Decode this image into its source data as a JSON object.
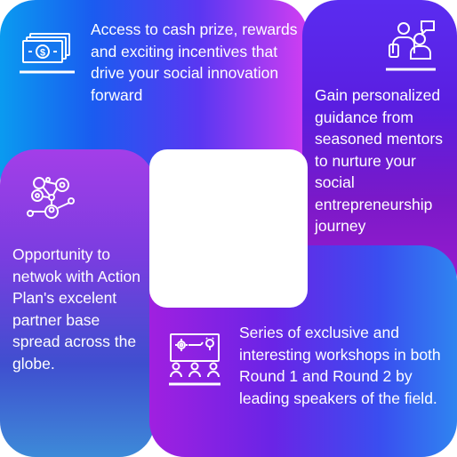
{
  "cards": {
    "cash_prize": {
      "text": "Access to cash prize, rewards and exciting incentives that drive your social innovation forward",
      "icon": "money-icon"
    },
    "mentorship": {
      "text": "Gain personalized guidance from seasoned mentors to nurture your social entrepreneurship journey",
      "icon": "mentor-icon"
    },
    "network": {
      "text": "Opportunity to netwok with Action Plan's excelent partner base spread across the globe.",
      "icon": "network-icon"
    },
    "workshops": {
      "text": "Series of exclusive and interesting workshops in both Round 1 and Round 2 by leading speakers of the field.",
      "icon": "workshop-icon"
    }
  },
  "colors": {
    "cash_prize_tile": "#1a5cf0",
    "mentorship_tile": "#6a1ed8",
    "network_tile": "#8a3de0",
    "workshops_tile": "#5a28e8",
    "text": "#ffffff"
  }
}
